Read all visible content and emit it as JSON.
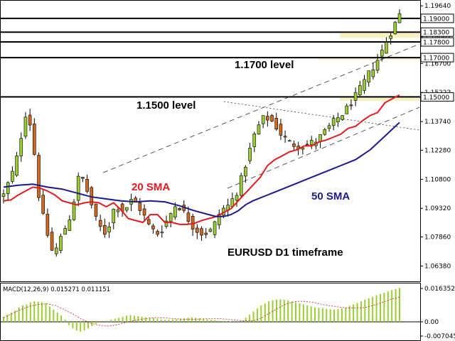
{
  "chart_data": [
    {
      "type": "candlestick",
      "title": "EURUSD D1 timeframe",
      "ylim": [
        1.056,
        1.199
      ],
      "y_ticks": [
        "1.19640",
        "1.18062",
        "1.16700",
        "1.15222",
        "1.13740",
        "1.12280",
        "1.10800",
        "1.09320",
        "1.07860",
        "1.06380"
      ],
      "levels": [
        {
          "value": 1.19,
          "label": "1.19000"
        },
        {
          "value": 1.183,
          "label": "1.18300"
        },
        {
          "value": 1.178,
          "label": "1.17800"
        },
        {
          "value": 1.17,
          "label": "1.17000"
        },
        {
          "value": 1.15,
          "label": "1.15000"
        }
      ],
      "annotations": [
        {
          "text": "1.1700 level",
          "color": "#000000"
        },
        {
          "text": "1.1500 level",
          "color": "#000000"
        },
        {
          "text": "20 SMA",
          "color": "#e41a1c"
        },
        {
          "text": "50 SMA",
          "color": "#1a1a8c"
        },
        {
          "text": "EURUSD D1 timeframe",
          "color": "#000000"
        }
      ],
      "series": [
        {
          "name": "20 SMA",
          "color": "#e41a1c",
          "points": [
            [
              0,
              1.097
            ],
            [
              5,
              1.0975
            ],
            [
              10,
              1.1
            ],
            [
              15,
              1.102
            ],
            [
              20,
              1.104
            ],
            [
              25,
              1.1035
            ],
            [
              30,
              1.102
            ],
            [
              35,
              1.1
            ],
            [
              40,
              1.097
            ],
            [
              45,
              1.096
            ],
            [
              50,
              1.095
            ],
            [
              55,
              1.096
            ],
            [
              60,
              1.0965
            ],
            [
              65,
              1.096
            ],
            [
              70,
              1.094
            ],
            [
              75,
              1.096
            ],
            [
              80,
              1.0925
            ],
            [
              85,
              1.088
            ],
            [
              90,
              1.087
            ],
            [
              95,
              1.086
            ],
            [
              100,
              1.09
            ],
            [
              105,
              1.09
            ],
            [
              110,
              1.086
            ],
            [
              115,
              1.086
            ],
            [
              120,
              1.085
            ],
            [
              125,
              1.085
            ],
            [
              130,
              1.0855
            ],
            [
              135,
              1.087
            ],
            [
              140,
              1.088
            ],
            [
              145,
              1.089
            ],
            [
              150,
              1.091
            ],
            [
              155,
              1.093
            ],
            [
              160,
              1.097
            ],
            [
              165,
              1.101
            ],
            [
              170,
              1.105
            ],
            [
              175,
              1.109
            ],
            [
              180,
              1.115
            ],
            [
              185,
              1.118
            ],
            [
              190,
              1.12
            ],
            [
              195,
              1.122
            ],
            [
              200,
              1.123
            ],
            [
              205,
              1.125
            ],
            [
              210,
              1.125
            ],
            [
              215,
              1.127
            ],
            [
              220,
              1.128
            ],
            [
              225,
              1.1295
            ],
            [
              230,
              1.131
            ],
            [
              235,
              1.134
            ],
            [
              240,
              1.135
            ],
            [
              245,
              1.138
            ],
            [
              250,
              1.1405
            ],
            [
              255,
              1.142
            ],
            [
              260,
              1.147
            ],
            [
              265,
              1.149
            ],
            [
              270,
              1.151
            ]
          ]
        },
        {
          "name": "50 SMA",
          "color": "#1a1a8c",
          "points": [
            [
              0,
              1.104
            ],
            [
              10,
              1.105
            ],
            [
              20,
              1.1055
            ],
            [
              30,
              1.104
            ],
            [
              40,
              1.103
            ],
            [
              50,
              1.101
            ],
            [
              60,
              1.099
            ],
            [
              70,
              1.098
            ],
            [
              80,
              1.097
            ],
            [
              90,
              1.0965
            ],
            [
              100,
              1.097
            ],
            [
              110,
              1.0965
            ],
            [
              120,
              1.0945
            ],
            [
              130,
              1.092
            ],
            [
              140,
              1.09
            ],
            [
              145,
              1.089
            ],
            [
              150,
              1.089
            ],
            [
              155,
              1.09
            ],
            [
              160,
              1.092
            ],
            [
              165,
              1.095
            ],
            [
              170,
              1.097
            ],
            [
              180,
              1.1
            ],
            [
              190,
              1.103
            ],
            [
              200,
              1.106
            ],
            [
              210,
              1.109
            ],
            [
              220,
              1.112
            ],
            [
              230,
              1.115
            ],
            [
              240,
              1.118
            ],
            [
              250,
              1.123
            ],
            [
              260,
              1.13
            ],
            [
              270,
              1.137
            ]
          ]
        }
      ]
    },
    {
      "type": "bar",
      "title": "MACD(12,26,9) 0.015271 0.011151",
      "y_ticks": [
        "0.016352",
        "0.00",
        "-0.007045"
      ],
      "ylim": [
        -0.0075,
        0.017
      ],
      "series": [
        {
          "name": "MACD",
          "color": "#9acd32",
          "values": [
            0.0025,
            0.0035,
            0.0045,
            0.0055,
            0.007,
            0.008,
            0.0085,
            0.0095,
            0.01,
            0.0098,
            0.0095,
            0.009,
            0.0075,
            0.006,
            0.0045,
            0.003,
            0.001,
            -0.0015,
            -0.003,
            -0.004,
            -0.0045,
            -0.004,
            -0.003,
            -0.002,
            -0.001,
            -0.0005,
            0.0,
            0.0005,
            0.001,
            0.0015,
            0.002,
            0.0025,
            0.003,
            0.0032,
            0.003,
            0.0028,
            0.0025,
            0.0022,
            0.002,
            0.0018,
            0.0015,
            0.0012,
            0.001,
            0.001,
            0.0011,
            0.0013,
            0.0015,
            0.0018,
            0.002,
            0.0022,
            0.002,
            0.0018,
            0.0015,
            0.0012,
            0.001,
            0.0008,
            0.0005,
            0.0004,
            0.0003,
            0.0002,
            0.0001,
            0.0003,
            0.0005,
            0.002,
            0.0035,
            0.005,
            0.0065,
            0.008,
            0.009,
            0.01,
            0.0105,
            0.0108,
            0.011,
            0.0108,
            0.0105,
            0.01,
            0.0095,
            0.009,
            0.0085,
            0.008,
            0.0075,
            0.007,
            0.0068,
            0.0066,
            0.0064,
            0.0062,
            0.006,
            0.0062,
            0.0065,
            0.007,
            0.0078,
            0.0085,
            0.0092,
            0.01,
            0.0108,
            0.0115,
            0.0122,
            0.013,
            0.0136,
            0.0142,
            0.0148,
            0.0155,
            0.016,
            0.0165
          ]
        },
        {
          "name": "Signal",
          "color": "#e41a1c",
          "values": [
            0.002,
            0.004,
            0.006,
            0.0075,
            0.0085,
            0.0088,
            0.008,
            0.006,
            0.004,
            0.0015,
            -0.0005,
            -0.0015,
            -0.002,
            -0.0015,
            -0.0005,
            0.0005,
            0.0012,
            0.0018,
            0.002,
            0.0018,
            0.0015,
            0.0012,
            0.0012,
            0.0014,
            0.0016,
            0.0016,
            0.0012,
            0.0008,
            0.0005,
            0.0005,
            0.002,
            0.0045,
            0.007,
            0.009,
            0.01,
            0.01,
            0.0095,
            0.0085,
            0.0078,
            0.0072,
            0.0068,
            0.0067,
            0.007,
            0.008,
            0.0095,
            0.011,
            0.012
          ]
        }
      ]
    }
  ]
}
